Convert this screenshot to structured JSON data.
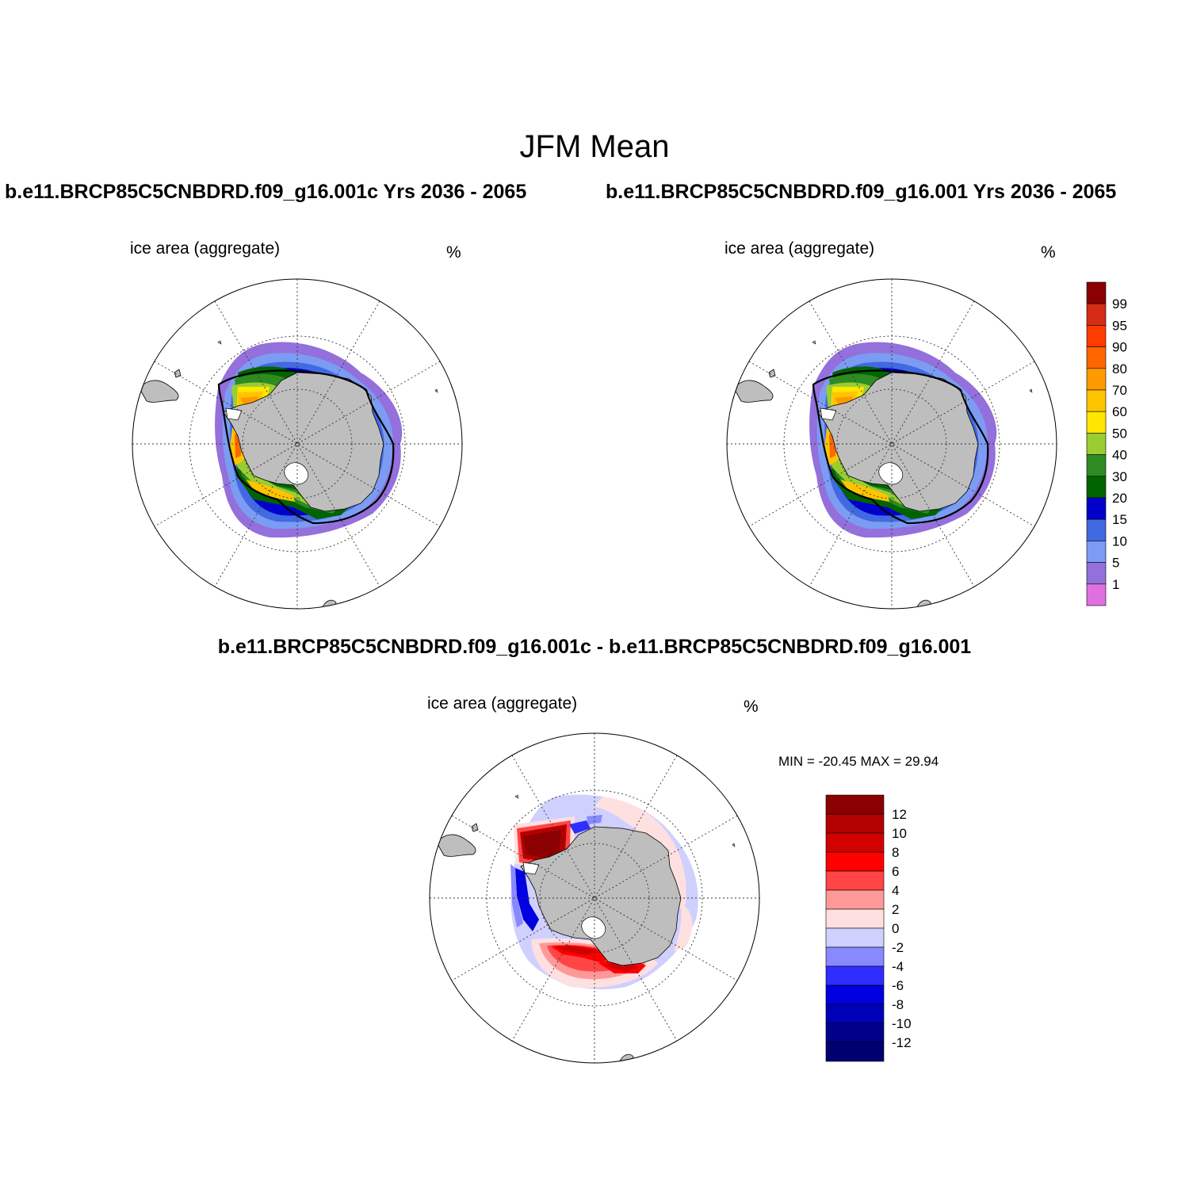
{
  "title": "JFM Mean",
  "panel_left": {
    "heading": "b.e11.BRCP85C5CNBDRD.f09_g16.001c  Yrs 2036 - 2065",
    "variable": "ice area  (aggregate)",
    "units": "%"
  },
  "panel_right": {
    "heading": "b.e11.BRCP85C5CNBDRD.f09_g16.001  Yrs 2036 - 2065",
    "variable": "ice area  (aggregate)",
    "units": "%"
  },
  "panel_diff": {
    "heading": "b.e11.BRCP85C5CNBDRD.f09_g16.001c - b.e11.BRCP85C5CNBDRD.f09_g16.001",
    "variable": "ice area  (aggregate)",
    "units": "%",
    "stats": "MIN = -20.45 MAX =  29.94"
  },
  "colorbar_abs": {
    "labels": [
      "99",
      "95",
      "90",
      "80",
      "70",
      "60",
      "50",
      "40",
      "30",
      "20",
      "15",
      "10",
      "5",
      "1"
    ],
    "colors": [
      "#8b0000",
      "#d42c16",
      "#ff3c00",
      "#ff6600",
      "#ff9900",
      "#ffc400",
      "#ffe600",
      "#9acd32",
      "#2e8b22",
      "#006400",
      "#0000cd",
      "#4169e1",
      "#7b9cf2",
      "#9370db",
      "#e070e0"
    ]
  },
  "colorbar_diff": {
    "labels": [
      "12",
      "10",
      "8",
      "6",
      "4",
      "2",
      "0",
      "-2",
      "-4",
      "-6",
      "-8",
      "-10",
      "-12"
    ],
    "colors": [
      "#8b0000",
      "#b30000",
      "#d40000",
      "#ff0000",
      "#ff4545",
      "#ff9999",
      "#ffe0e0",
      "#d0d0ff",
      "#8888ff",
      "#2e2eff",
      "#0000e0",
      "#0000b8",
      "#00008b",
      "#000070"
    ]
  },
  "map_colors": {
    "land": "#bebebe",
    "ocean": "#ffffff"
  }
}
